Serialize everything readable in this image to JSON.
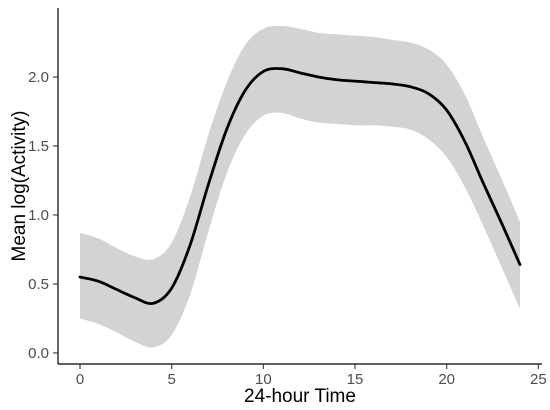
{
  "chart_data": {
    "type": "line",
    "xlabel": "24-hour Time",
    "ylabel": "Mean log(Activity)",
    "xlim": [
      -1.2,
      25.2
    ],
    "ylim": [
      -0.08,
      2.5
    ],
    "x_ticks": [
      0,
      5,
      10,
      15,
      20,
      25
    ],
    "x_tick_labels": [
      "0",
      "5",
      "10",
      "15",
      "20",
      "25"
    ],
    "y_ticks": [
      0.0,
      0.5,
      1.0,
      1.5,
      2.0
    ],
    "y_tick_labels": [
      "0.0",
      "0.5",
      "1.0",
      "1.5",
      "2.0"
    ],
    "grid": false,
    "line_color": "#000000",
    "band_color": "#d3d3d3",
    "series": [
      {
        "x": [
          0,
          1,
          2,
          3,
          4,
          5,
          6,
          7,
          8,
          9,
          10,
          11,
          12,
          13,
          14,
          15,
          16,
          17,
          18,
          19,
          20,
          21,
          22,
          23,
          24
        ],
        "y": [
          0.55,
          0.52,
          0.46,
          0.4,
          0.36,
          0.47,
          0.78,
          1.22,
          1.62,
          1.9,
          2.04,
          2.06,
          2.03,
          2.0,
          1.98,
          1.97,
          1.96,
          1.95,
          1.93,
          1.88,
          1.76,
          1.53,
          1.23,
          0.94,
          0.64
        ],
        "lower": [
          0.25,
          0.21,
          0.15,
          0.08,
          0.04,
          0.13,
          0.42,
          0.88,
          1.3,
          1.58,
          1.72,
          1.74,
          1.7,
          1.67,
          1.66,
          1.65,
          1.65,
          1.64,
          1.62,
          1.55,
          1.42,
          1.2,
          0.92,
          0.62,
          0.32
        ],
        "upper": [
          0.87,
          0.83,
          0.76,
          0.7,
          0.68,
          0.8,
          1.13,
          1.58,
          1.96,
          2.23,
          2.35,
          2.37,
          2.35,
          2.32,
          2.31,
          2.3,
          2.29,
          2.27,
          2.25,
          2.2,
          2.09,
          1.87,
          1.56,
          1.26,
          0.95
        ]
      }
    ]
  }
}
